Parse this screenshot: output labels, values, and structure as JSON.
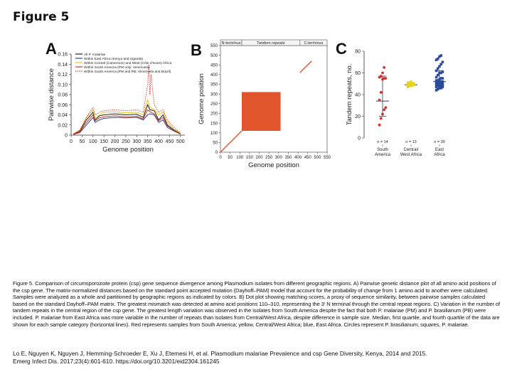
{
  "figure_title": "Figure 5",
  "panels": {
    "a": {
      "letter": "A",
      "chart_data": {
        "type": "line",
        "xlabel": "Genome position",
        "ylabel": "Pairwise distance",
        "xlim": [
          0,
          520
        ],
        "ylim": [
          0,
          0.16
        ],
        "x_ticks": [
          "0",
          "50",
          "100",
          "150",
          "200",
          "250",
          "300",
          "350",
          "400",
          "450",
          "500"
        ],
        "y_ticks": [
          "0",
          "0.02",
          "0.04",
          "0.06",
          "0.08",
          "0.10",
          "0.12",
          "0.14",
          "0.16"
        ],
        "legend": [
          {
            "label": "All P. malariae",
            "color": "#222222",
            "style": "solid"
          },
          {
            "label": "Within East Africa (Kenya and Uganda)",
            "color": "#2b4a9a",
            "style": "solid"
          },
          {
            "label": "Within Central (Cameroon) and West (Côte d'Ivoire) Africa",
            "color": "#e8c51f",
            "style": "solid"
          },
          {
            "label": "Within South America (PM only; Venezuela)",
            "color": "#c8342a",
            "style": "solid"
          },
          {
            "label": "Within South America (PM and PB; Venezuela and Brazil)",
            "color": "#e0443a",
            "style": "dotted"
          }
        ],
        "series": [
          {
            "name": "All P. malariae",
            "x": [
              10,
              40,
              70,
              100,
              110,
              130,
              150,
              200,
              250,
              300,
              330,
              350,
              360,
              380,
              400,
              420,
              440,
              470,
              500
            ],
            "y": [
              0.002,
              0.008,
              0.03,
              0.045,
              0.03,
              0.038,
              0.04,
              0.042,
              0.04,
              0.041,
              0.035,
              0.06,
              0.05,
              0.048,
              0.03,
              0.04,
              0.02,
              0.01,
              0.003
            ]
          },
          {
            "name": "Within East Africa (Kenya and Uganda)",
            "x": [
              10,
              40,
              70,
              100,
              110,
              130,
              150,
              200,
              250,
              300,
              330,
              350,
              360,
              380,
              400,
              420,
              440,
              470,
              500
            ],
            "y": [
              0.001,
              0.005,
              0.02,
              0.035,
              0.025,
              0.03,
              0.033,
              0.035,
              0.034,
              0.035,
              0.03,
              0.04,
              0.042,
              0.04,
              0.025,
              0.03,
              0.015,
              0.008,
              0.002
            ]
          },
          {
            "name": "Within Central (Cameroon) and West (Côte d'Ivoire) Africa",
            "x": [
              10,
              40,
              70,
              100,
              110,
              130,
              150,
              200,
              250,
              300,
              330,
              350,
              360,
              380,
              400,
              420,
              440,
              470,
              500
            ],
            "y": [
              0.003,
              0.01,
              0.035,
              0.05,
              0.033,
              0.04,
              0.045,
              0.046,
              0.044,
              0.045,
              0.04,
              0.07,
              0.055,
              0.05,
              0.04,
              0.045,
              0.025,
              0.012,
              0.004
            ]
          },
          {
            "name": "Within South America (PM only; Venezuela)",
            "x": [
              10,
              40,
              70,
              100,
              110,
              130,
              150,
              200,
              250,
              300,
              330,
              350,
              360,
              380,
              400,
              420,
              440,
              470,
              500
            ],
            "y": [
              0.001,
              0.006,
              0.025,
              0.04,
              0.028,
              0.034,
              0.036,
              0.038,
              0.036,
              0.037,
              0.032,
              0.05,
              0.046,
              0.042,
              0.028,
              0.035,
              0.018,
              0.009,
              0.002
            ]
          },
          {
            "name": "Within South America (PM and PB; Venezuela and Brazil)",
            "x": [
              10,
              40,
              70,
              100,
              110,
              130,
              150,
              200,
              250,
              300,
              330,
              350,
              355,
              360,
              365,
              380,
              400,
              420,
              440,
              470,
              500
            ],
            "y": [
              0.002,
              0.01,
              0.035,
              0.055,
              0.04,
              0.045,
              0.048,
              0.05,
              0.048,
              0.05,
              0.045,
              0.1,
              0.14,
              0.08,
              0.12,
              0.06,
              0.045,
              0.05,
              0.03,
              0.015,
              0.004
            ]
          }
        ]
      }
    },
    "b": {
      "letter": "B",
      "chart_data": {
        "type": "scatter",
        "xlabel": "Genome position",
        "ylabel": "Genome position",
        "xlim": [
          0,
          550
        ],
        "ylim": [
          0,
          550
        ],
        "x_ticks": [
          "0",
          "50",
          "100",
          "150",
          "200",
          "250",
          "300",
          "350",
          "400",
          "450",
          "500",
          "550"
        ],
        "y_ticks": [
          "0",
          "50",
          "100",
          "150",
          "200",
          "250",
          "300",
          "350",
          "400",
          "450",
          "500",
          "550"
        ],
        "region_labels": [
          "N-terminus",
          "Tandem repeats",
          "C-terminus"
        ],
        "diagonal_segments": [
          {
            "x": [
              0,
              110
            ],
            "y": [
              0,
              110
            ]
          },
          {
            "x": [
              410,
              470
            ],
            "y": [
              410,
              470
            ]
          }
        ],
        "repeat_block": {
          "x": [
            110,
            310
          ],
          "y": [
            110,
            310
          ]
        },
        "color": "#e0552b"
      }
    },
    "c": {
      "letter": "C",
      "chart_data": {
        "type": "scatter",
        "ylabel": "Tandem repeats, no.",
        "ylim": [
          0,
          80
        ],
        "y_ticks": [
          "0",
          "20",
          "40",
          "60",
          "80"
        ],
        "categories": [
          "South\nAmerica",
          "Central/\nWest Africa",
          "East\nAfrica"
        ],
        "category_labels": [
          {
            "line1": "South",
            "line2": "America"
          },
          {
            "line1": "Central/",
            "line2": "West Africa"
          },
          {
            "line1": "East",
            "line2": "Africa"
          }
        ],
        "n_labels": [
          "n = 14",
          "n = 13",
          "n = 39"
        ],
        "colors": [
          "#d4322c",
          "#e8d21f",
          "#2b4a9a"
        ],
        "markers": [
          "circle",
          "circle",
          "square"
        ],
        "groups": [
          {
            "name": "South America",
            "values": [
              12,
              18,
              22,
              26,
              28,
              35,
              42,
              54,
              55,
              55,
              56,
              57,
              60,
              65
            ],
            "median": 34,
            "q1": 20,
            "q3": 57
          },
          {
            "name": "Central/West Africa",
            "values": [
              47,
              48,
              48,
              49,
              49,
              49,
              50,
              50,
              50,
              50,
              51,
              51,
              52
            ],
            "median": 49,
            "q1": 48,
            "q3": 51
          },
          {
            "name": "East Africa",
            "values": [
              44,
              45,
              46,
              46,
              47,
              47,
              48,
              48,
              48,
              49,
              49,
              50,
              50,
              50,
              50,
              51,
              51,
              52,
              52,
              52,
              53,
              53,
              54,
              55,
              55,
              56,
              58,
              60,
              60,
              61,
              62,
              64,
              66,
              68,
              70,
              72,
              73,
              75,
              76
            ],
            "median": 52,
            "q1": 46,
            "q3": 62
          }
        ]
      }
    }
  },
  "caption": "Figure 5. Comparison of circumsporozoite protein (csp) gene sequence divergence among Plasmodium isolates from different geographic regions. A) Pairwise genetic distance plot of all amino acid positions of the csp gene. The matrix-normalized distances based on the standard point accepted mutation (Dayhoff–PAM) model that account for the probability of change from 1 amino acid to another were calculated. Samples were analyzed as a whole and partitioned by geographic regions as indicated by colors. B) Dot plot showing matching scores, a proxy of sequence similarity, between pairwise samples calculated based on the standard Dayhoff–PAM matrix. The greatest mismatch was detected at amino acid positions 110–310, representing the 3′ N terminal through the central repeat regions. C) Variation in the number of tandem repeats in the central region of the csp gene. The greatest length variation was observed in the isolates from South America despite the fact that both P. malariae (PM) and P. brasilianum (PB) were included. P. malariae from East Africa was more variable in the number of repeats than isolates from Central/West Africa, despite difference in sample size. Median, first quartile, and fourth quartile of the data are shown for each sample category (horizontal lines). Red represents samples from South America; yellow, Central/West Africa; blue, East Africa. Circles represent P. brasilianum; squares, P. malariae.",
  "citation": {
    "line1": "Lo E, Nguyen K, Nguyen J, Hemming-Schroeder E, Xu J, Etemesi H, et al. Plasmodium malariae Prevalence and csp Gene Diversity, Kenya, 2014 and 2015.",
    "line2": "Emerg Infect Dis. 2017;23(4):601-610. https://doi.org/10.3201/eid2304.161245"
  }
}
